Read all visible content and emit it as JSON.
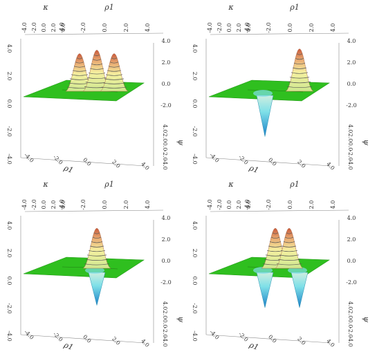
{
  "figure": {
    "panel_count": 4,
    "axis_labels": {
      "rho1": "ρ1",
      "kappa": "κ",
      "psi": "ψ"
    }
  },
  "chart_data": [
    {
      "type": "surface",
      "panel": "top-left",
      "title": "",
      "xlabel": "ρ1",
      "ylabel": "κ",
      "zlabel": "ψ",
      "xlim": [
        -4,
        4
      ],
      "ylim": [
        -4,
        4
      ],
      "zlim": [
        -4,
        4
      ],
      "x_ticks": [
        "-4.0",
        "-2.0",
        "0.0",
        "2.0",
        "4.0"
      ],
      "y_ticks": [
        "-4.0",
        "-2.0",
        "0.0",
        "2.0",
        "4.0"
      ],
      "z_ticks_right": [
        "4.0",
        "2.0",
        "0.0",
        "-2.0"
      ],
      "z_ticks_left": [
        "4.0",
        "2.0",
        "0.0",
        "-2.0",
        "-4.0"
      ],
      "z_ticks_lower": [
        "-4.0",
        "-2.0",
        "0.0",
        "2.0",
        "4.0"
      ],
      "colormap": {
        "positive_peak": "#c85a3c",
        "positive_mid": "#f5f0a0",
        "flat": "#2fbf1f",
        "negative_mid": "#7fe0e8",
        "negative_peak": "#1a7fc8"
      },
      "features": [
        {
          "kind": "peak",
          "sign": 1,
          "at": "left",
          "height": 3.2
        },
        {
          "kind": "peak",
          "sign": 1,
          "at": "center",
          "height": 3.5
        },
        {
          "kind": "peak",
          "sign": 1,
          "at": "right",
          "height": 3.2
        }
      ]
    },
    {
      "type": "surface",
      "panel": "top-right",
      "title": "",
      "xlabel": "ρ1",
      "ylabel": "κ",
      "zlabel": "ψ",
      "xlim": [
        -4,
        4
      ],
      "ylim": [
        -4,
        4
      ],
      "zlim": [
        -4,
        4
      ],
      "x_ticks": [
        "-4.0",
        "-2.0",
        "0.0",
        "2.0",
        "4.0"
      ],
      "y_ticks": [
        "-4.0",
        "-2.0",
        "0.0",
        "2.0",
        "4.0"
      ],
      "z_ticks_right": [
        "4.0",
        "2.0",
        "0.0",
        "-2.0"
      ],
      "z_ticks_left": [
        "4.0",
        "2.0",
        "0.0",
        "-2.0",
        "-4.0"
      ],
      "z_ticks_lower": [
        "-4.0",
        "-2.0",
        "0.0",
        "2.0",
        "4.0"
      ],
      "colormap": {
        "positive_peak": "#c85a3c",
        "positive_mid": "#f5f0a0",
        "flat": "#2fbf1f",
        "negative_mid": "#7fe0e8",
        "negative_peak": "#1a7fc8"
      },
      "features": [
        {
          "kind": "peak",
          "sign": 1,
          "at": "right",
          "height": 3.6
        },
        {
          "kind": "trough",
          "sign": -1,
          "at": "left",
          "depth": -3.5
        }
      ]
    },
    {
      "type": "surface",
      "panel": "bottom-left",
      "title": "",
      "xlabel": "ρ1",
      "ylabel": "κ",
      "zlabel": "ψ",
      "xlim": [
        -4,
        4
      ],
      "ylim": [
        -4,
        4
      ],
      "zlim": [
        -4,
        4
      ],
      "x_ticks": [
        "-4.0",
        "-2.0",
        "0.0",
        "2.0",
        "4.0"
      ],
      "y_ticks": [
        "-4.0",
        "-2.0",
        "0.0",
        "2.0",
        "4.0"
      ],
      "z_ticks_right": [
        "4.0",
        "2.0",
        "0.0",
        "-2.0"
      ],
      "z_ticks_left": [
        "4.0",
        "2.0",
        "0.0",
        "-2.0",
        "-4.0"
      ],
      "z_ticks_lower": [
        "-4.0",
        "-2.0",
        "0.0",
        "2.0",
        "4.0"
      ],
      "colormap": {
        "positive_peak": "#c85a3c",
        "positive_mid": "#f5f0a0",
        "flat": "#2fbf1f",
        "negative_mid": "#7fe0e8",
        "negative_peak": "#1a7fc8"
      },
      "features": [
        {
          "kind": "peak",
          "sign": 1,
          "at": "center",
          "height": 3.4
        },
        {
          "kind": "trough",
          "sign": -1,
          "at": "center",
          "depth": -2.8
        }
      ]
    },
    {
      "type": "surface",
      "panel": "bottom-right",
      "title": "",
      "xlabel": "ρ1",
      "ylabel": "κ",
      "zlabel": "ψ",
      "xlim": [
        -4,
        4
      ],
      "ylim": [
        -4,
        4
      ],
      "zlim": [
        -4,
        4
      ],
      "x_ticks": [
        "-4.0",
        "-2.0",
        "0.0",
        "2.0",
        "4.0"
      ],
      "y_ticks": [
        "-4.0",
        "-2.0",
        "0.0",
        "2.0",
        "4.0"
      ],
      "z_ticks_right": [
        "4.0",
        "2.0",
        "0.0",
        "-2.0"
      ],
      "z_ticks_left": [
        "4.0",
        "2.0",
        "0.0",
        "-2.0",
        "-4.0"
      ],
      "z_ticks_lower": [
        "-4.0",
        "-2.0",
        "0.0",
        "2.0",
        "4.0"
      ],
      "colormap": {
        "positive_peak": "#c85a3c",
        "positive_mid": "#f5f0a0",
        "flat": "#2fbf1f",
        "negative_mid": "#7fe0e8",
        "negative_peak": "#1a7fc8"
      },
      "features": [
        {
          "kind": "peak",
          "sign": 1,
          "at": "center-left",
          "height": 3.4
        },
        {
          "kind": "peak",
          "sign": 1,
          "at": "center-right",
          "height": 3.4
        },
        {
          "kind": "trough",
          "sign": -1,
          "at": "left",
          "depth": -3.0
        },
        {
          "kind": "trough",
          "sign": -1,
          "at": "right",
          "depth": -3.0
        }
      ]
    }
  ]
}
